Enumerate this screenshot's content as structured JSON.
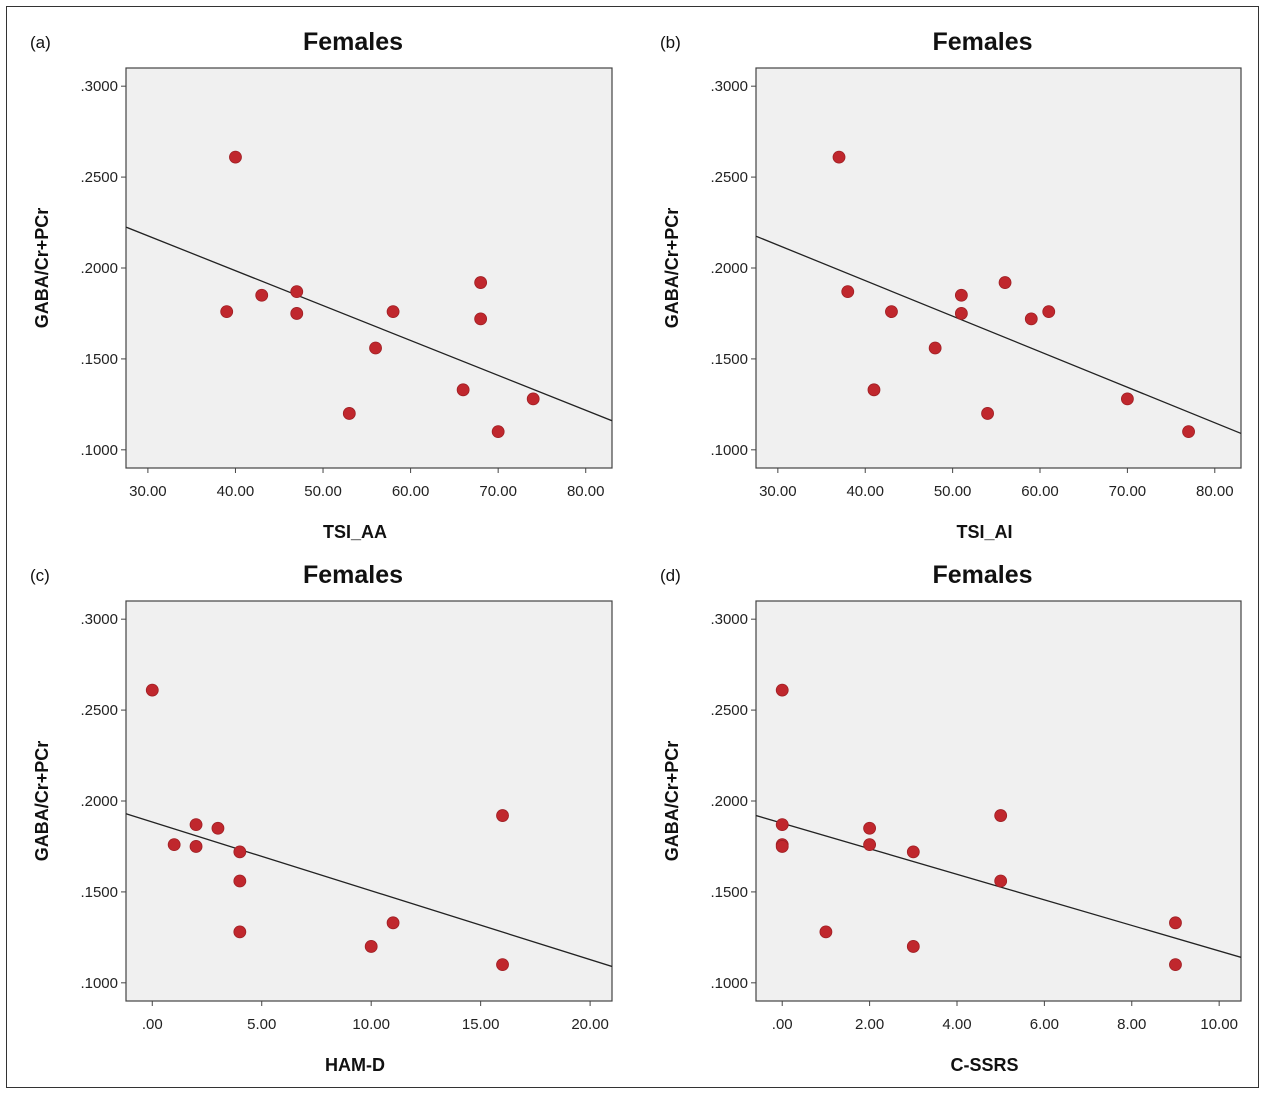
{
  "figure": {
    "background": "#ffffff",
    "plot_background": "#f0f0f0",
    "point_color": "#c0272d",
    "line_color": "#222222"
  },
  "chart_data": [
    {
      "panel_label": "(a)",
      "type": "scatter",
      "title": "Females",
      "xlabel": "TSI_AA",
      "ylabel": "GABA/Cr+PCr",
      "xlim": [
        27.5,
        83.0
      ],
      "ylim": [
        0.09,
        0.31
      ],
      "xticks": [
        30,
        40,
        50,
        60,
        70,
        80
      ],
      "xtick_labels": [
        "30.00",
        "40.00",
        "50.00",
        "60.00",
        "70.00",
        "80.00"
      ],
      "yticks": [
        0.1,
        0.15,
        0.2,
        0.25,
        0.3
      ],
      "ytick_labels": [
        ".1000",
        ".1500",
        ".2000",
        ".2500",
        ".3000"
      ],
      "points": [
        {
          "x": 40,
          "y": 0.261
        },
        {
          "x": 39,
          "y": 0.176
        },
        {
          "x": 43,
          "y": 0.185
        },
        {
          "x": 47,
          "y": 0.187
        },
        {
          "x": 47,
          "y": 0.175
        },
        {
          "x": 53,
          "y": 0.12
        },
        {
          "x": 56,
          "y": 0.156
        },
        {
          "x": 58,
          "y": 0.176
        },
        {
          "x": 66,
          "y": 0.133
        },
        {
          "x": 68,
          "y": 0.192
        },
        {
          "x": 68,
          "y": 0.172
        },
        {
          "x": 70,
          "y": 0.11
        },
        {
          "x": 74,
          "y": 0.128
        }
      ],
      "fit_line": {
        "x": [
          27.5,
          83.0
        ],
        "y": [
          0.2225,
          0.116
        ]
      },
      "grid": false,
      "legend": "none"
    },
    {
      "panel_label": "(b)",
      "type": "scatter",
      "title": "Females",
      "xlabel": "TSI_AI",
      "ylabel": "GABA/Cr+PCr",
      "xlim": [
        27.5,
        83.0
      ],
      "ylim": [
        0.09,
        0.31
      ],
      "xticks": [
        30,
        40,
        50,
        60,
        70,
        80
      ],
      "xtick_labels": [
        "30.00",
        "40.00",
        "50.00",
        "60.00",
        "70.00",
        "80.00"
      ],
      "yticks": [
        0.1,
        0.15,
        0.2,
        0.25,
        0.3
      ],
      "ytick_labels": [
        ".1000",
        ".1500",
        ".2000",
        ".2500",
        ".3000"
      ],
      "points": [
        {
          "x": 37,
          "y": 0.261
        },
        {
          "x": 38,
          "y": 0.187
        },
        {
          "x": 41,
          "y": 0.133
        },
        {
          "x": 43,
          "y": 0.176
        },
        {
          "x": 48,
          "y": 0.156
        },
        {
          "x": 51,
          "y": 0.185
        },
        {
          "x": 51,
          "y": 0.175
        },
        {
          "x": 54,
          "y": 0.12
        },
        {
          "x": 56,
          "y": 0.192
        },
        {
          "x": 59,
          "y": 0.172
        },
        {
          "x": 61,
          "y": 0.176
        },
        {
          "x": 70,
          "y": 0.128
        },
        {
          "x": 77,
          "y": 0.11
        }
      ],
      "fit_line": {
        "x": [
          27.5,
          83.0
        ],
        "y": [
          0.2175,
          0.109
        ]
      },
      "grid": false,
      "legend": "none"
    },
    {
      "panel_label": "(c)",
      "type": "scatter",
      "title": "Females",
      "xlabel": "HAM-D",
      "ylabel": "GABA/Cr+PCr",
      "xlim": [
        -1.2,
        21.0
      ],
      "ylim": [
        0.09,
        0.31
      ],
      "xticks": [
        0,
        5,
        10,
        15,
        20
      ],
      "xtick_labels": [
        ".00",
        "5.00",
        "10.00",
        "15.00",
        "20.00"
      ],
      "yticks": [
        0.1,
        0.15,
        0.2,
        0.25,
        0.3
      ],
      "ytick_labels": [
        ".1000",
        ".1500",
        ".2000",
        ".2500",
        ".3000"
      ],
      "points": [
        {
          "x": 0,
          "y": 0.261
        },
        {
          "x": 1,
          "y": 0.176
        },
        {
          "x": 2,
          "y": 0.187
        },
        {
          "x": 2,
          "y": 0.175
        },
        {
          "x": 3,
          "y": 0.185
        },
        {
          "x": 4,
          "y": 0.172
        },
        {
          "x": 4,
          "y": 0.156
        },
        {
          "x": 4,
          "y": 0.128
        },
        {
          "x": 10,
          "y": 0.12
        },
        {
          "x": 11,
          "y": 0.133
        },
        {
          "x": 16,
          "y": 0.192
        },
        {
          "x": 16,
          "y": 0.11
        }
      ],
      "fit_line": {
        "x": [
          -1.2,
          21.0
        ],
        "y": [
          0.193,
          0.109
        ]
      },
      "grid": false,
      "legend": "none"
    },
    {
      "panel_label": "(d)",
      "type": "scatter",
      "title": "Females",
      "xlabel": "C-SSRS",
      "ylabel": "GABA/Cr+PCr",
      "xlim": [
        -0.6,
        10.5
      ],
      "ylim": [
        0.09,
        0.31
      ],
      "xticks": [
        0,
        2,
        4,
        6,
        8,
        10
      ],
      "xtick_labels": [
        ".00",
        "2.00",
        "4.00",
        "6.00",
        "8.00",
        "10.00"
      ],
      "yticks": [
        0.1,
        0.15,
        0.2,
        0.25,
        0.3
      ],
      "ytick_labels": [
        ".1000",
        ".1500",
        ".2000",
        ".2500",
        ".3000"
      ],
      "points": [
        {
          "x": 0,
          "y": 0.261
        },
        {
          "x": 0,
          "y": 0.187
        },
        {
          "x": 0,
          "y": 0.176
        },
        {
          "x": 0,
          "y": 0.175
        },
        {
          "x": 1,
          "y": 0.128
        },
        {
          "x": 2,
          "y": 0.185
        },
        {
          "x": 2,
          "y": 0.176
        },
        {
          "x": 3,
          "y": 0.172
        },
        {
          "x": 3,
          "y": 0.12
        },
        {
          "x": 5,
          "y": 0.192
        },
        {
          "x": 5,
          "y": 0.156
        },
        {
          "x": 9,
          "y": 0.133
        },
        {
          "x": 9,
          "y": 0.11
        }
      ],
      "fit_line": {
        "x": [
          -0.6,
          10.5
        ],
        "y": [
          0.192,
          0.114
        ]
      },
      "grid": false,
      "legend": "none"
    }
  ]
}
